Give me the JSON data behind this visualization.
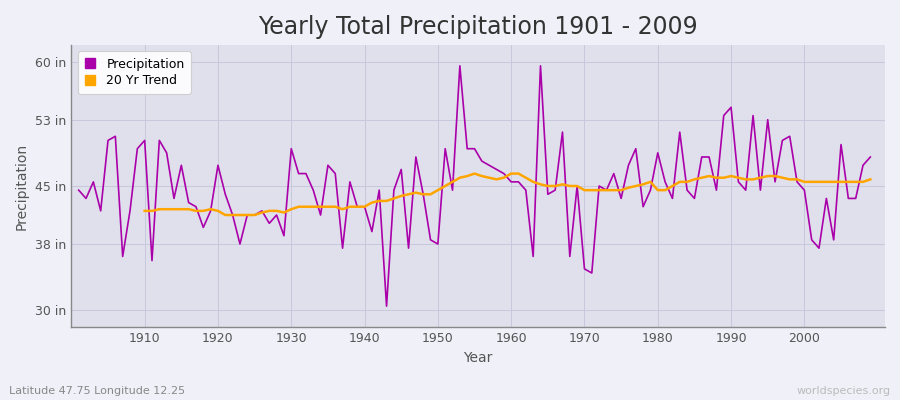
{
  "title": "Yearly Total Precipitation 1901 - 2009",
  "xlabel": "Year",
  "ylabel": "Precipitation",
  "lat_lon_label": "Latitude 47.75 Longitude 12.25",
  "watermark": "worldspecies.org",
  "years": [
    1901,
    1902,
    1903,
    1904,
    1905,
    1906,
    1907,
    1908,
    1909,
    1910,
    1911,
    1912,
    1913,
    1914,
    1915,
    1916,
    1917,
    1918,
    1919,
    1920,
    1921,
    1922,
    1923,
    1924,
    1925,
    1926,
    1927,
    1928,
    1929,
    1930,
    1931,
    1932,
    1933,
    1934,
    1935,
    1936,
    1937,
    1938,
    1939,
    1940,
    1941,
    1942,
    1943,
    1944,
    1945,
    1946,
    1947,
    1948,
    1949,
    1950,
    1951,
    1952,
    1953,
    1954,
    1955,
    1956,
    1957,
    1958,
    1959,
    1960,
    1961,
    1962,
    1963,
    1964,
    1965,
    1966,
    1967,
    1968,
    1969,
    1970,
    1971,
    1972,
    1973,
    1974,
    1975,
    1976,
    1977,
    1978,
    1979,
    1980,
    1981,
    1982,
    1983,
    1984,
    1985,
    1986,
    1987,
    1988,
    1989,
    1990,
    1991,
    1992,
    1993,
    1994,
    1995,
    1996,
    1997,
    1998,
    1999,
    2000,
    2001,
    2002,
    2003,
    2004,
    2005,
    2006,
    2007,
    2008,
    2009
  ],
  "precip_in": [
    44.5,
    43.5,
    45.5,
    42.0,
    50.5,
    51.0,
    36.5,
    42.0,
    49.5,
    50.5,
    36.0,
    50.5,
    49.0,
    43.5,
    47.5,
    43.0,
    42.5,
    40.0,
    42.0,
    47.5,
    44.0,
    41.5,
    38.0,
    41.5,
    41.5,
    42.0,
    40.5,
    41.5,
    39.0,
    49.5,
    46.5,
    46.5,
    44.5,
    41.5,
    47.5,
    46.5,
    37.5,
    45.5,
    42.5,
    42.5,
    39.5,
    44.5,
    30.5,
    44.5,
    47.0,
    37.5,
    48.5,
    44.0,
    38.5,
    38.0,
    49.5,
    44.5,
    59.5,
    49.5,
    49.5,
    48.0,
    47.5,
    47.0,
    46.5,
    45.5,
    45.5,
    44.5,
    36.5,
    59.5,
    44.0,
    44.5,
    51.5,
    36.5,
    45.0,
    35.0,
    34.5,
    45.0,
    44.5,
    46.5,
    43.5,
    47.5,
    49.5,
    42.5,
    44.5,
    49.0,
    45.5,
    43.5,
    51.5,
    44.5,
    43.5,
    48.5,
    48.5,
    44.5,
    53.5,
    54.5,
    45.5,
    44.5,
    53.5,
    44.5,
    53.0,
    45.5,
    50.5,
    51.0,
    45.5,
    44.5,
    38.5,
    37.5,
    43.5,
    38.5,
    50.0,
    43.5,
    43.5,
    47.5,
    48.5
  ],
  "trend_years": [
    1910,
    1911,
    1912,
    1913,
    1914,
    1915,
    1916,
    1917,
    1918,
    1919,
    1920,
    1921,
    1922,
    1923,
    1924,
    1925,
    1926,
    1927,
    1928,
    1929,
    1930,
    1931,
    1932,
    1933,
    1934,
    1935,
    1936,
    1937,
    1938,
    1939,
    1940,
    1941,
    1942,
    1943,
    1944,
    1945,
    1946,
    1947,
    1948,
    1949,
    1950,
    1951,
    1952,
    1953,
    1954,
    1955,
    1956,
    1957,
    1958,
    1959,
    1960,
    1961,
    1962,
    1963,
    1964,
    1965,
    1966,
    1967,
    1968,
    1969,
    1970,
    1971,
    1972,
    1973,
    1974,
    1975,
    1976,
    1977,
    1978,
    1979,
    1980,
    1981,
    1982,
    1983,
    1984,
    1985,
    1986,
    1987,
    1988,
    1989,
    1990,
    1991,
    1992,
    1993,
    1994,
    1995,
    1996,
    1997,
    1998,
    1999,
    2000,
    2001,
    2002,
    2003,
    2004,
    2005,
    2006,
    2007,
    2008,
    2009
  ],
  "trend_in": [
    42.0,
    42.0,
    42.2,
    42.2,
    42.2,
    42.2,
    42.2,
    42.0,
    42.0,
    42.2,
    42.0,
    41.5,
    41.5,
    41.5,
    41.5,
    41.5,
    41.8,
    42.0,
    42.0,
    41.8,
    42.2,
    42.5,
    42.5,
    42.5,
    42.5,
    42.5,
    42.5,
    42.2,
    42.5,
    42.5,
    42.5,
    43.0,
    43.2,
    43.2,
    43.5,
    43.8,
    44.0,
    44.2,
    44.0,
    44.0,
    44.5,
    45.0,
    45.5,
    46.0,
    46.2,
    46.5,
    46.2,
    46.0,
    45.8,
    46.0,
    46.5,
    46.5,
    46.0,
    45.5,
    45.2,
    45.0,
    45.0,
    45.2,
    45.0,
    45.0,
    44.5,
    44.5,
    44.5,
    44.5,
    44.5,
    44.5,
    44.8,
    45.0,
    45.2,
    45.5,
    44.5,
    44.5,
    45.0,
    45.5,
    45.5,
    45.8,
    46.0,
    46.2,
    46.0,
    46.0,
    46.2,
    46.0,
    45.8,
    45.8,
    46.0,
    46.2,
    46.2,
    46.0,
    45.8,
    45.8,
    45.5,
    45.5,
    45.5,
    45.5,
    45.5,
    45.5,
    45.5,
    45.5,
    45.5,
    45.8
  ],
  "precip_color": "#AA00AA",
  "trend_color": "#FFA500",
  "plot_bg_color": "#E0E0EC",
  "fig_bg_color": "#F0F0F8",
  "grid_color": "#C8C8DC",
  "ylim": [
    28,
    62
  ],
  "yticks": [
    30,
    38,
    45,
    53,
    60
  ],
  "ytick_labels": [
    "30 in",
    "38 in",
    "45 in",
    "53 in",
    "60 in"
  ],
  "xticks": [
    1910,
    1920,
    1930,
    1940,
    1950,
    1960,
    1970,
    1980,
    1990,
    2000
  ],
  "xlim": [
    1900,
    2011
  ],
  "title_fontsize": 17,
  "label_fontsize": 10,
  "tick_fontsize": 9,
  "legend_fontsize": 9
}
